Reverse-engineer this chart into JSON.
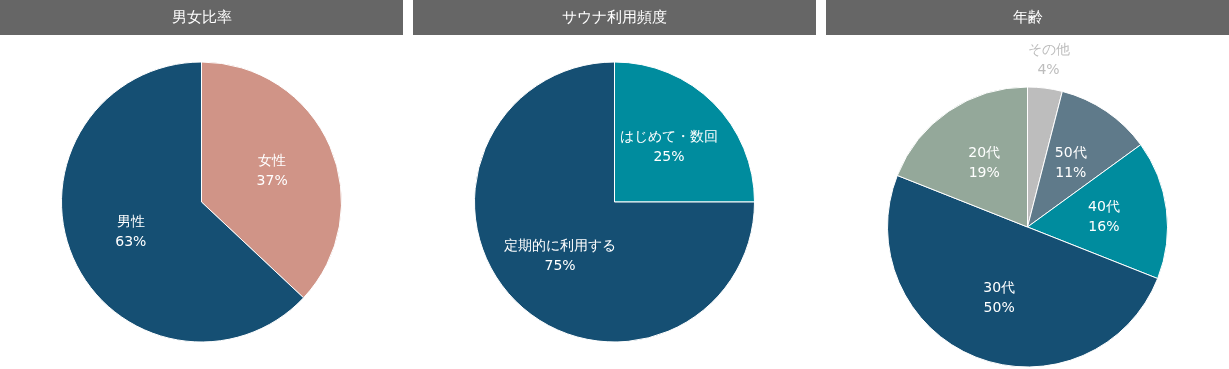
{
  "chart_data": [
    {
      "type": "pie",
      "title": "男女比率",
      "categories": [
        "女性",
        "男性"
      ],
      "values": [
        37,
        63
      ],
      "value_labels": [
        "37%",
        "63%"
      ],
      "colors": [
        "#d09487",
        "#154f73"
      ],
      "legend": false
    },
    {
      "type": "pie",
      "title": "サウナ利用頻度",
      "categories": [
        "はじめて・数回",
        "定期的に利用する"
      ],
      "values": [
        25,
        75
      ],
      "value_labels": [
        "25%",
        "75%"
      ],
      "colors": [
        "#008c9e",
        "#154f73"
      ],
      "legend": false
    },
    {
      "type": "pie",
      "title": "年齢",
      "categories": [
        "その他",
        "50代",
        "40代",
        "30代",
        "20代"
      ],
      "values": [
        4,
        11,
        16,
        50,
        19
      ],
      "value_labels": [
        "4%",
        "11%",
        "16%",
        "50%",
        "19%"
      ],
      "colors": [
        "#bdbdbd",
        "#5f7a8a",
        "#008c9e",
        "#154f73",
        "#94a89a"
      ],
      "legend": false
    }
  ]
}
